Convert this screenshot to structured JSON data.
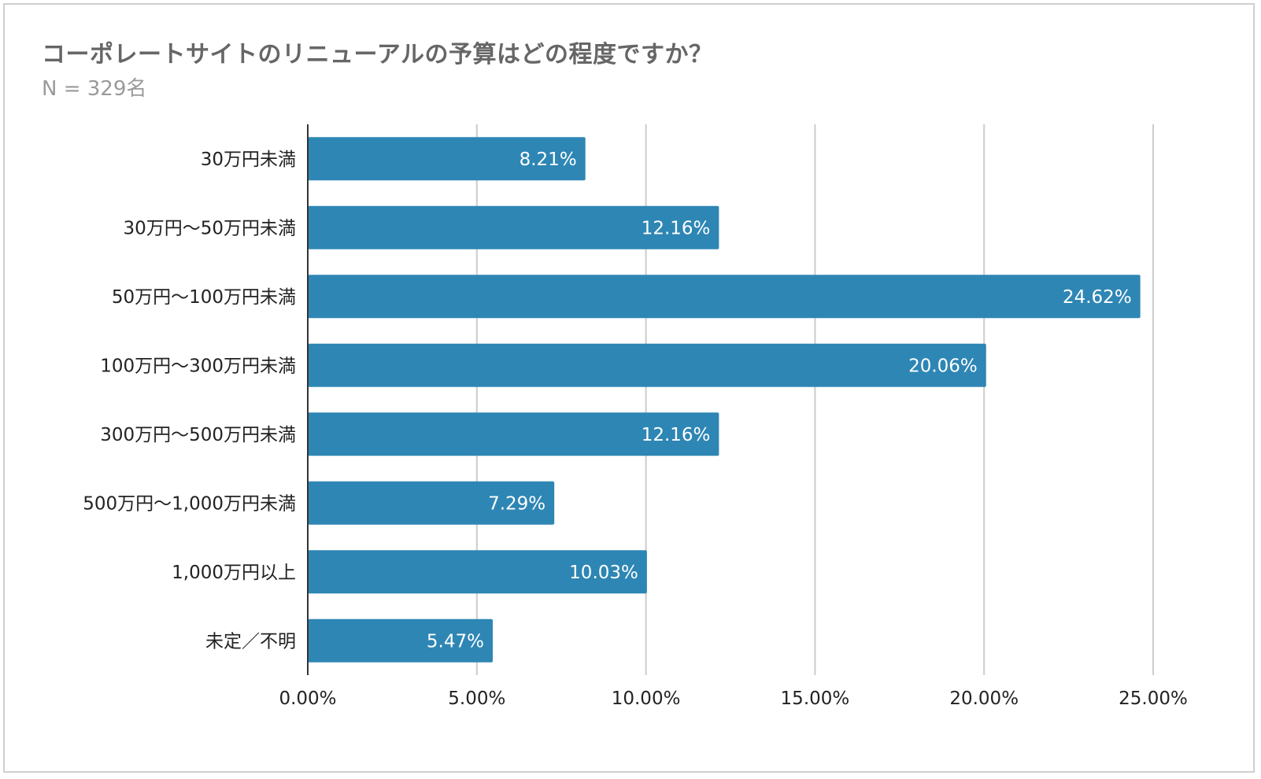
{
  "chart_data": {
    "type": "bar",
    "orientation": "horizontal",
    "title": "コーポレートサイトのリニューアルの予算はどの程度ですか？",
    "subtitle": "N = 329名",
    "categories": [
      "30万円未満",
      "30万円〜50万円未満",
      "50万円〜100万円未満",
      "100万円〜300万円未満",
      "300万円〜500万円未満",
      "500万円〜1,000万円未満",
      "1,000万円以上",
      "未定／不明"
    ],
    "values": [
      8.21,
      12.16,
      24.62,
      20.06,
      12.16,
      7.29,
      10.03,
      5.47
    ],
    "value_labels": [
      "8.21%",
      "12.16%",
      "24.62%",
      "20.06%",
      "12.16%",
      "7.29%",
      "10.03%",
      "5.47%"
    ],
    "xlim": [
      0,
      25
    ],
    "x_ticks": [
      0,
      5,
      10,
      15,
      20,
      25
    ],
    "x_tick_labels": [
      "0.00%",
      "5.00%",
      "10.00%",
      "15.00%",
      "20.00%",
      "25.00%"
    ],
    "grid": true,
    "bar_color": "#2e86b4",
    "legend": "none"
  }
}
